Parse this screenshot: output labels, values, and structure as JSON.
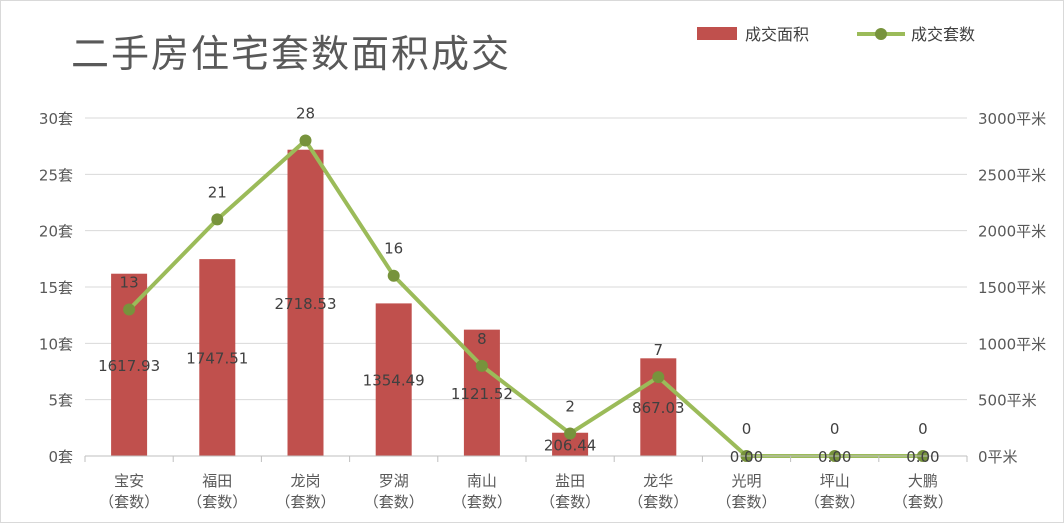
{
  "chart_data": {
    "type": "bar",
    "title": "二手房住宅套数面积成交",
    "categories": [
      [
        "宝安",
        "（套数）"
      ],
      [
        "福田",
        "（套数）"
      ],
      [
        "龙岗",
        "（套数）"
      ],
      [
        "罗湖",
        "（套数）"
      ],
      [
        "南山",
        "（套数）"
      ],
      [
        "盐田",
        "（套数）"
      ],
      [
        "龙华",
        "（套数）"
      ],
      [
        "光明",
        "（套数）"
      ],
      [
        "坪山",
        "（套数）"
      ],
      [
        "大鹏",
        "（套数）"
      ]
    ],
    "series": [
      {
        "name": "成交面积",
        "type": "bar",
        "axis": "right",
        "color": "#c0504d",
        "values": [
          1617.93,
          1747.51,
          2718.53,
          1354.49,
          1121.52,
          206.44,
          867.03,
          0.0,
          0.0,
          0.0
        ],
        "labels": [
          "1617.93",
          "1747.51",
          "2718.53",
          "1354.49",
          "1121.52",
          "206.44",
          "867.03",
          "0.00",
          "0.00",
          "0.00"
        ]
      },
      {
        "name": "成交套数",
        "type": "line",
        "axis": "left",
        "color": "#9bbb59",
        "marker_color": "#77933c",
        "values": [
          13,
          21,
          28,
          16,
          8,
          2,
          7,
          0,
          0,
          0
        ],
        "labels": [
          "13",
          "21",
          "28",
          "16",
          "8",
          "2",
          "7",
          "0",
          "0",
          "0"
        ]
      }
    ],
    "y_left": {
      "ylim": [
        0,
        30
      ],
      "ticks": [
        0,
        5,
        10,
        15,
        20,
        25,
        30
      ],
      "tick_labels": [
        "0套",
        "5套",
        "10套",
        "15套",
        "20套",
        "25套",
        "30套"
      ]
    },
    "y_right": {
      "ylim": [
        0,
        3000
      ],
      "ticks": [
        0,
        500,
        1000,
        1500,
        2000,
        2500,
        3000
      ],
      "tick_labels": [
        "0平米",
        "500平米",
        "1000平米",
        "1500平米",
        "2000平米",
        "2500平米",
        "3000平米"
      ]
    },
    "grid": true,
    "legend_position": "top-right"
  }
}
